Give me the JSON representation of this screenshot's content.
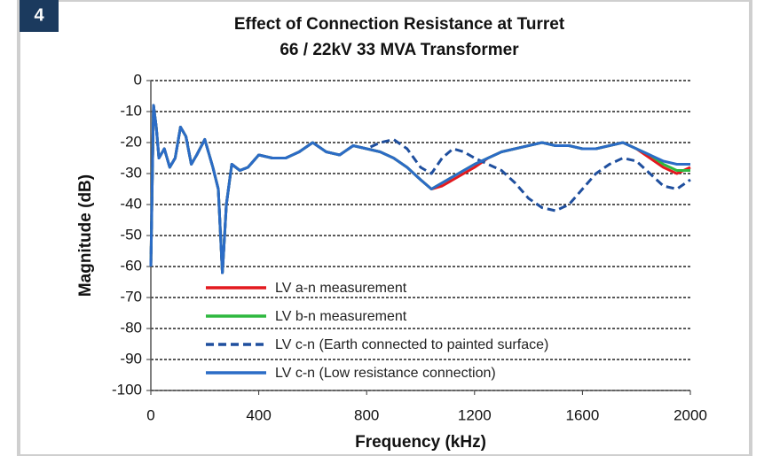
{
  "figure_number": "4",
  "chart_data": {
    "type": "line",
    "title": "Effect of Connection  Resistance at Turret",
    "subtitle": "66 / 22kV  33 MVA Transformer",
    "x_label": "Frequency (kHz)",
    "y_label": "Magnitude (dB)",
    "x": [
      0,
      10,
      20,
      30,
      50,
      70,
      90,
      110,
      130,
      150,
      170,
      200,
      230,
      250,
      265,
      270,
      280,
      300,
      330,
      360,
      400,
      450,
      500,
      550,
      600,
      650,
      700,
      750,
      800,
      850,
      900,
      950,
      1000,
      1040,
      1080,
      1120,
      1160,
      1200,
      1250,
      1300,
      1350,
      1400,
      1450,
      1500,
      1550,
      1600,
      1650,
      1700,
      1750,
      1800,
      1850,
      1900,
      1950,
      2000
    ],
    "series": [
      {
        "name": "LV a-n measurement",
        "color": "#e3191f",
        "line_style": "solid",
        "values": [
          -60,
          -8,
          -15,
          -25,
          -22,
          -28,
          -25,
          -15,
          -18,
          -27,
          -24,
          -19,
          -28,
          -35,
          -62,
          -55,
          -40,
          -27,
          -29,
          -28,
          -24,
          -25,
          -25,
          -23,
          -20,
          -23,
          -24,
          -21,
          -22,
          -23,
          -25,
          -28,
          -32,
          -35,
          -34,
          -32,
          -30,
          -28,
          -25,
          -23,
          -22,
          -21,
          -20,
          -21,
          -21,
          -22,
          -22,
          -21,
          -20,
          -22,
          -25,
          -28,
          -30,
          -28
        ]
      },
      {
        "name": "LV b-n measurement",
        "color": "#2eb83f",
        "line_style": "solid",
        "values": [
          -60,
          -8,
          -15,
          -25,
          -22,
          -28,
          -25,
          -15,
          -18,
          -27,
          -24,
          -19,
          -28,
          -35,
          -62,
          -55,
          -40,
          -27,
          -29,
          -28,
          -24,
          -25,
          -25,
          -23,
          -20,
          -23,
          -24,
          -21,
          -22,
          -23,
          -25,
          -28,
          -32,
          -35,
          -33,
          -31,
          -29,
          -27,
          -25,
          -23,
          -22,
          -21,
          -20,
          -21,
          -21,
          -22,
          -22,
          -21,
          -20,
          -22,
          -24,
          -27,
          -29,
          -29
        ]
      },
      {
        "name": "LV c-n (Earth connected to painted surface)",
        "color": "#1f4f9e",
        "line_style": "dashed",
        "values": [
          -60,
          -8,
          -15,
          -25,
          -22,
          -28,
          -25,
          -15,
          -18,
          -27,
          -24,
          -19,
          -28,
          -35,
          -62,
          -55,
          -40,
          -27,
          -29,
          -28,
          -24,
          -25,
          -25,
          -23,
          -20,
          -23,
          -24,
          -21,
          -22,
          -20,
          -19,
          -22,
          -28,
          -30,
          -25,
          -22,
          -23,
          -25,
          -27,
          -29,
          -33,
          -38,
          -41,
          -42,
          -40,
          -35,
          -30,
          -27,
          -25,
          -26,
          -30,
          -34,
          -35,
          -32
        ]
      },
      {
        "name": "LV c-n (Low resistance connection)",
        "color": "#2b6cc6",
        "line_style": "solid",
        "values": [
          -60,
          -8,
          -15,
          -25,
          -22,
          -28,
          -25,
          -15,
          -18,
          -27,
          -24,
          -19,
          -28,
          -35,
          -62,
          -55,
          -40,
          -27,
          -29,
          -28,
          -24,
          -25,
          -25,
          -23,
          -20,
          -23,
          -24,
          -21,
          -22,
          -23,
          -25,
          -28,
          -32,
          -35,
          -33,
          -31,
          -29,
          -27,
          -25,
          -23,
          -22,
          -21,
          -20,
          -21,
          -21,
          -22,
          -22,
          -21,
          -20,
          -22,
          -24,
          -26,
          -27,
          -27
        ]
      }
    ],
    "xlim": [
      0,
      2000
    ],
    "xticks": [
      0,
      400,
      800,
      1200,
      1600,
      2000
    ],
    "ylim": [
      -100,
      0
    ],
    "yticks": [
      0,
      -10,
      -20,
      -30,
      -40,
      -50,
      -60,
      -70,
      -80,
      -90,
      -100
    ],
    "grid": true,
    "legend": "lower left"
  }
}
